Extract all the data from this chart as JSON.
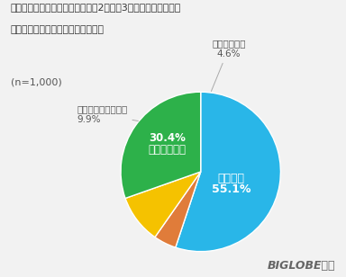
{
  "title_line1": "今後新型コロナウイルス流行の第2波、第3波が発生した場合、",
  "title_line2": "緊急事態宣言の発出をしてほしいか",
  "n_label": "(n=1,000)",
  "pie_values": [
    55.1,
    4.6,
    9.9,
    30.4
  ],
  "pie_colors": [
    "#29b6e8",
    "#e07c3a",
    "#f5c200",
    "#2db14a"
  ],
  "background_color": "#f2f2f2",
  "biglobe_text": "BIGLOBE調べ",
  "label_sou_omou": "そう思う\n55.1%",
  "label_yaya": "ややそう思う\n30.4%",
  "label_amari": "あまりそう思わない\n9.9%",
  "label_so_owanai": "そう思わない\n4.6%",
  "text_color_white": "#ffffff",
  "text_color_dark": "#555555",
  "title_color": "#333333"
}
